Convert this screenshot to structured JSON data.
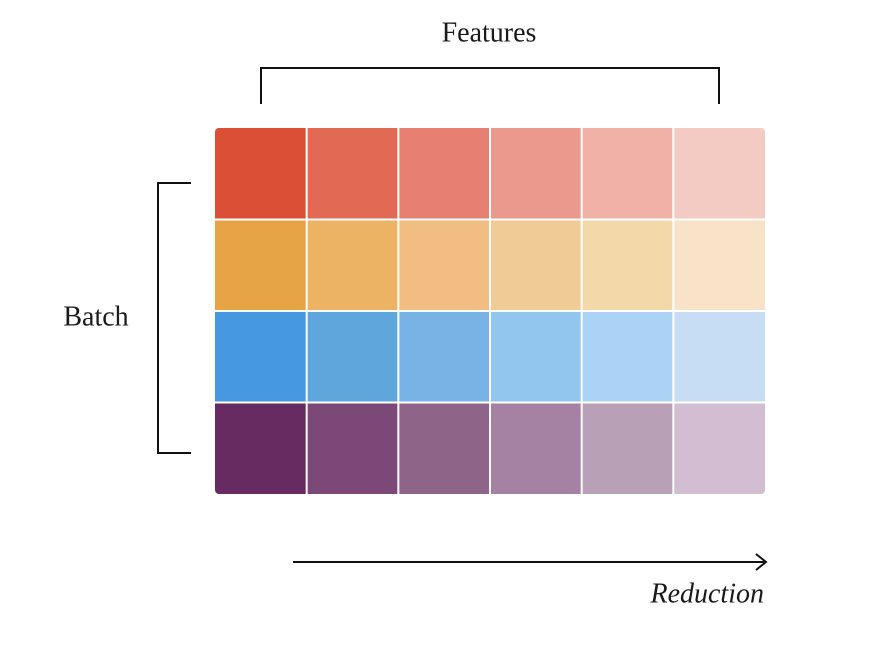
{
  "labels": {
    "top": "Features",
    "left": "Batch",
    "bottom": "Reduction"
  }
}
